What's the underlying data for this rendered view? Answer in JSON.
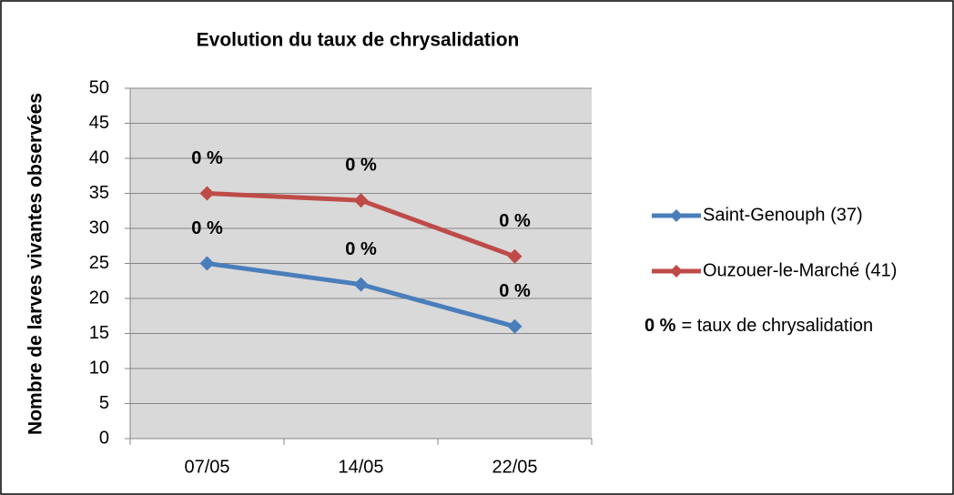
{
  "chart_data": {
    "type": "line",
    "title": "Evolution du taux de chrysalidation",
    "y_label": "Nombre de larves vivantes observées",
    "categories": [
      "07/05",
      "14/05",
      "22/05"
    ],
    "series": [
      {
        "name": "Saint-Genouph (37)",
        "color": "#4a7ebb",
        "values": [
          25,
          22,
          16
        ],
        "point_labels": [
          "0 %",
          "0 %",
          "0 %"
        ]
      },
      {
        "name": "Ouzouer-le-Marché (41)",
        "color": "#be4b48",
        "values": [
          35,
          34,
          26
        ],
        "point_labels": [
          "0 %",
          "0 %",
          "0 %"
        ]
      }
    ],
    "legend_note": {
      "bold": "0 %",
      "text": "= taux de chrysalidation"
    },
    "ylim": [
      0,
      50
    ],
    "yticks": [
      0,
      5,
      10,
      15,
      20,
      25,
      30,
      35,
      40,
      45,
      50
    ],
    "grid": true,
    "legend": "right"
  }
}
